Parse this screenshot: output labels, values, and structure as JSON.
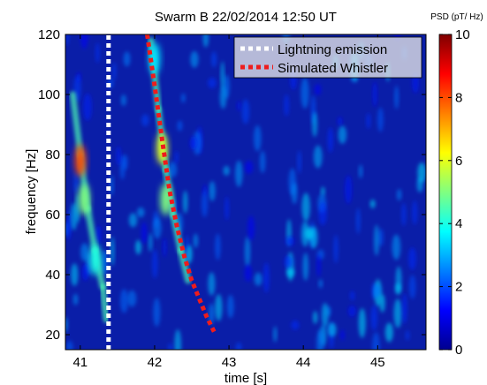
{
  "chart_data": {
    "type": "heatmap",
    "title": "Swarm B 22/02/2014 12:50 UT",
    "xlabel": "time [s]",
    "ylabel": "frequency [Hz]",
    "xlim": [
      40.8,
      45.65
    ],
    "ylim": [
      15,
      120
    ],
    "x_ticks": [
      41,
      42,
      43,
      44,
      45
    ],
    "x_tick_labels": [
      "41",
      "42",
      "43",
      "44",
      "45"
    ],
    "y_ticks": [
      20,
      40,
      60,
      80,
      100,
      120
    ],
    "y_tick_labels": [
      "20",
      "40",
      "60",
      "80",
      "100",
      "120"
    ],
    "colorbar": {
      "label": "PSD (pT/  Hz)",
      "range": [
        0,
        10
      ],
      "ticks": [
        0,
        2,
        4,
        6,
        8,
        10
      ],
      "tick_labels": [
        "0",
        "2",
        "4",
        "6",
        "8",
        "10"
      ],
      "colormap": "jet"
    },
    "features": [
      {
        "name": "Lightning emission",
        "style": "dotted",
        "color": "#ffffff",
        "x": [
          41.38,
          41.38
        ],
        "y": [
          15,
          120
        ]
      },
      {
        "name": "Simulated Whistler",
        "style": "dotted",
        "color": "#ee1c1c",
        "x": [
          41.9,
          42.0,
          42.1,
          42.2,
          42.3,
          42.4,
          42.5,
          42.6,
          42.7,
          42.8
        ],
        "y": [
          120,
          103,
          85,
          68,
          56,
          46,
          38,
          32,
          26,
          21
        ]
      }
    ],
    "hotspots": [
      {
        "x": 41.0,
        "y": 78,
        "value": 8.0
      },
      {
        "x": 41.05,
        "y": 65,
        "value": 5.0
      },
      {
        "x": 41.2,
        "y": 45,
        "value": 4.0
      },
      {
        "x": 42.1,
        "y": 82,
        "value": 6.0
      },
      {
        "x": 42.15,
        "y": 65,
        "value": 5.0
      },
      {
        "x": 42.0,
        "y": 112,
        "value": 3.5
      }
    ],
    "legend": {
      "placement": "top-right",
      "entries": [
        "Lightning emission",
        "Simulated Whistler"
      ]
    }
  }
}
